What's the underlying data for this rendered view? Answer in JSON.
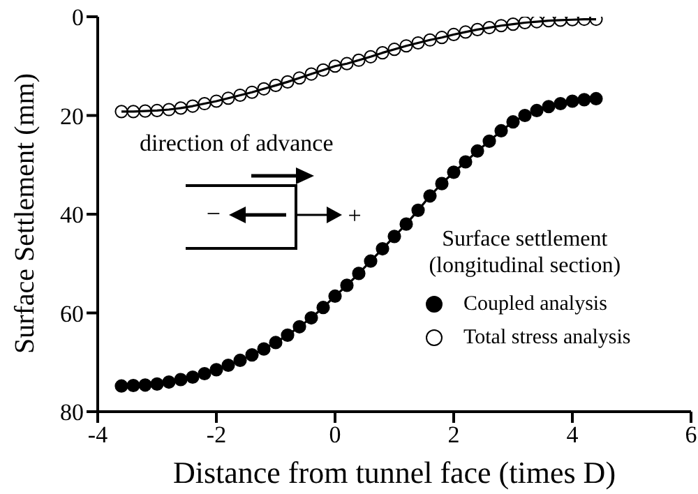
{
  "chart_data": {
    "type": "line",
    "xlabel": "Distance from tunnel face (times D)",
    "ylabel": "Surface Settlement (mm)",
    "legend_title": "Surface settlement\n(longitudinal section)",
    "legend": "bottom right",
    "marker": "circle",
    "line_style": "solid",
    "grid": false,
    "xlim": [
      -4,
      6
    ],
    "xticks": [
      -4,
      -2,
      0,
      2,
      4,
      6
    ],
    "ylim": [
      80,
      0
    ],
    "yticks": [
      0,
      20,
      40,
      60,
      80
    ],
    "annotations": [
      "direction of advance",
      "−",
      "+"
    ],
    "x": [
      -3.6,
      -3.4,
      -3.2,
      -3.0,
      -2.8,
      -2.6,
      -2.4,
      -2.2,
      -2.0,
      -1.8,
      -1.6,
      -1.4,
      -1.2,
      -1.0,
      -0.8,
      -0.6,
      -0.4,
      -0.2,
      0,
      0.2,
      0.4,
      0.6,
      0.8,
      1.0,
      1.2,
      1.4,
      1.6,
      1.8,
      2.0,
      2.2,
      2.4,
      2.6,
      2.8,
      3.0,
      3.2,
      3.4,
      3.6,
      3.8,
      4.0,
      4.2,
      4.4
    ],
    "series": [
      {
        "name": "Coupled analysis",
        "color": "#000000",
        "values": [
          74.8,
          74.7,
          74.6,
          74.4,
          74.0,
          73.5,
          73.0,
          72.3,
          71.5,
          70.6,
          69.6,
          68.5,
          67.3,
          66.0,
          64.5,
          62.8,
          61.0,
          58.9,
          56.6,
          54.4,
          52.0,
          49.5,
          47.0,
          44.5,
          42.0,
          39.2,
          36.3,
          33.8,
          31.5,
          29.4,
          27.2,
          25.2,
          23.1,
          21.3,
          20.0,
          19.0,
          18.2,
          17.6,
          17.1,
          16.8,
          16.6
        ]
      },
      {
        "name": "Total stress analysis",
        "color": "#ffffff",
        "values": [
          19.2,
          19.2,
          19.1,
          19.0,
          18.8,
          18.5,
          18.1,
          17.6,
          17.1,
          16.5,
          15.9,
          15.3,
          14.6,
          13.9,
          13.2,
          12.4,
          11.6,
          10.8,
          10.0,
          9.5,
          8.8,
          8.1,
          7.3,
          6.6,
          5.9,
          5.3,
          4.7,
          4.2,
          3.6,
          3.1,
          2.6,
          2.2,
          1.8,
          1.5,
          1.2,
          1.0,
          0.8,
          0.7,
          0.6,
          0.5,
          0.5
        ]
      }
    ]
  }
}
